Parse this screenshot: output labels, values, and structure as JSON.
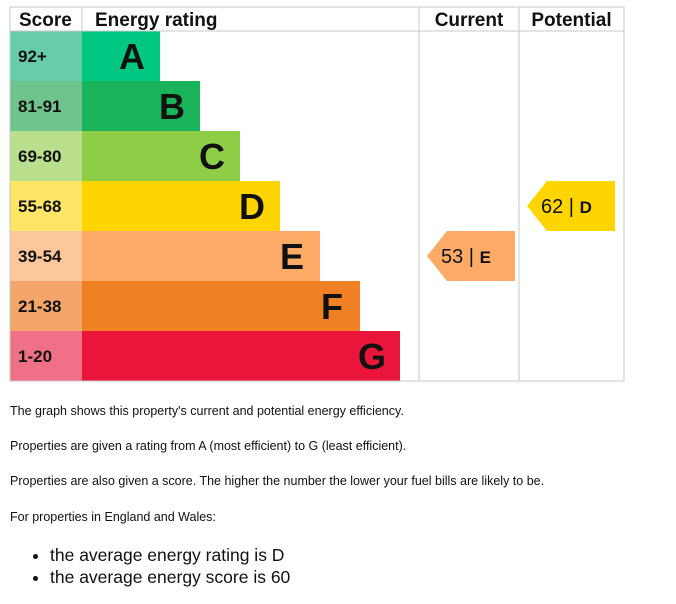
{
  "chart_data": {
    "type": "bar",
    "headers": {
      "score": "Score",
      "rating": "Energy rating",
      "current": "Current",
      "potential": "Potential"
    },
    "bands": [
      {
        "score": "92+",
        "letter": "A",
        "color": "#00c781",
        "score_bg": "#67ccab"
      },
      {
        "score": "81-91",
        "letter": "B",
        "color": "#19b459",
        "score_bg": "#6fc38c"
      },
      {
        "score": "69-80",
        "letter": "C",
        "color": "#8dce46",
        "score_bg": "#b9de8c"
      },
      {
        "score": "55-68",
        "letter": "D",
        "color": "#ffd500",
        "score_bg": "#fde565"
      },
      {
        "score": "39-54",
        "letter": "E",
        "color": "#fcaa65",
        "score_bg": "#fcc89b"
      },
      {
        "score": "21-38",
        "letter": "F",
        "color": "#ef8023",
        "score_bg": "#f4a56a"
      },
      {
        "score": "1-20",
        "letter": "G",
        "color": "#e9153b",
        "score_bg": "#f07187"
      }
    ],
    "current": {
      "value": 53,
      "band": "E",
      "color": "#fcaa65"
    },
    "potential": {
      "value": 62,
      "band": "D",
      "color": "#ffd500"
    }
  },
  "text": {
    "p1": "The graph shows this property's current and potential energy efficiency.",
    "p2": "Properties are given a rating from A (most efficient) to G (least efficient).",
    "p3": "Properties are also given a score. The higher the number the lower your fuel bills are likely to be.",
    "p4": "For properties in England and Wales:",
    "bullets": [
      "the average energy rating is D",
      "the average energy score is 60"
    ]
  }
}
